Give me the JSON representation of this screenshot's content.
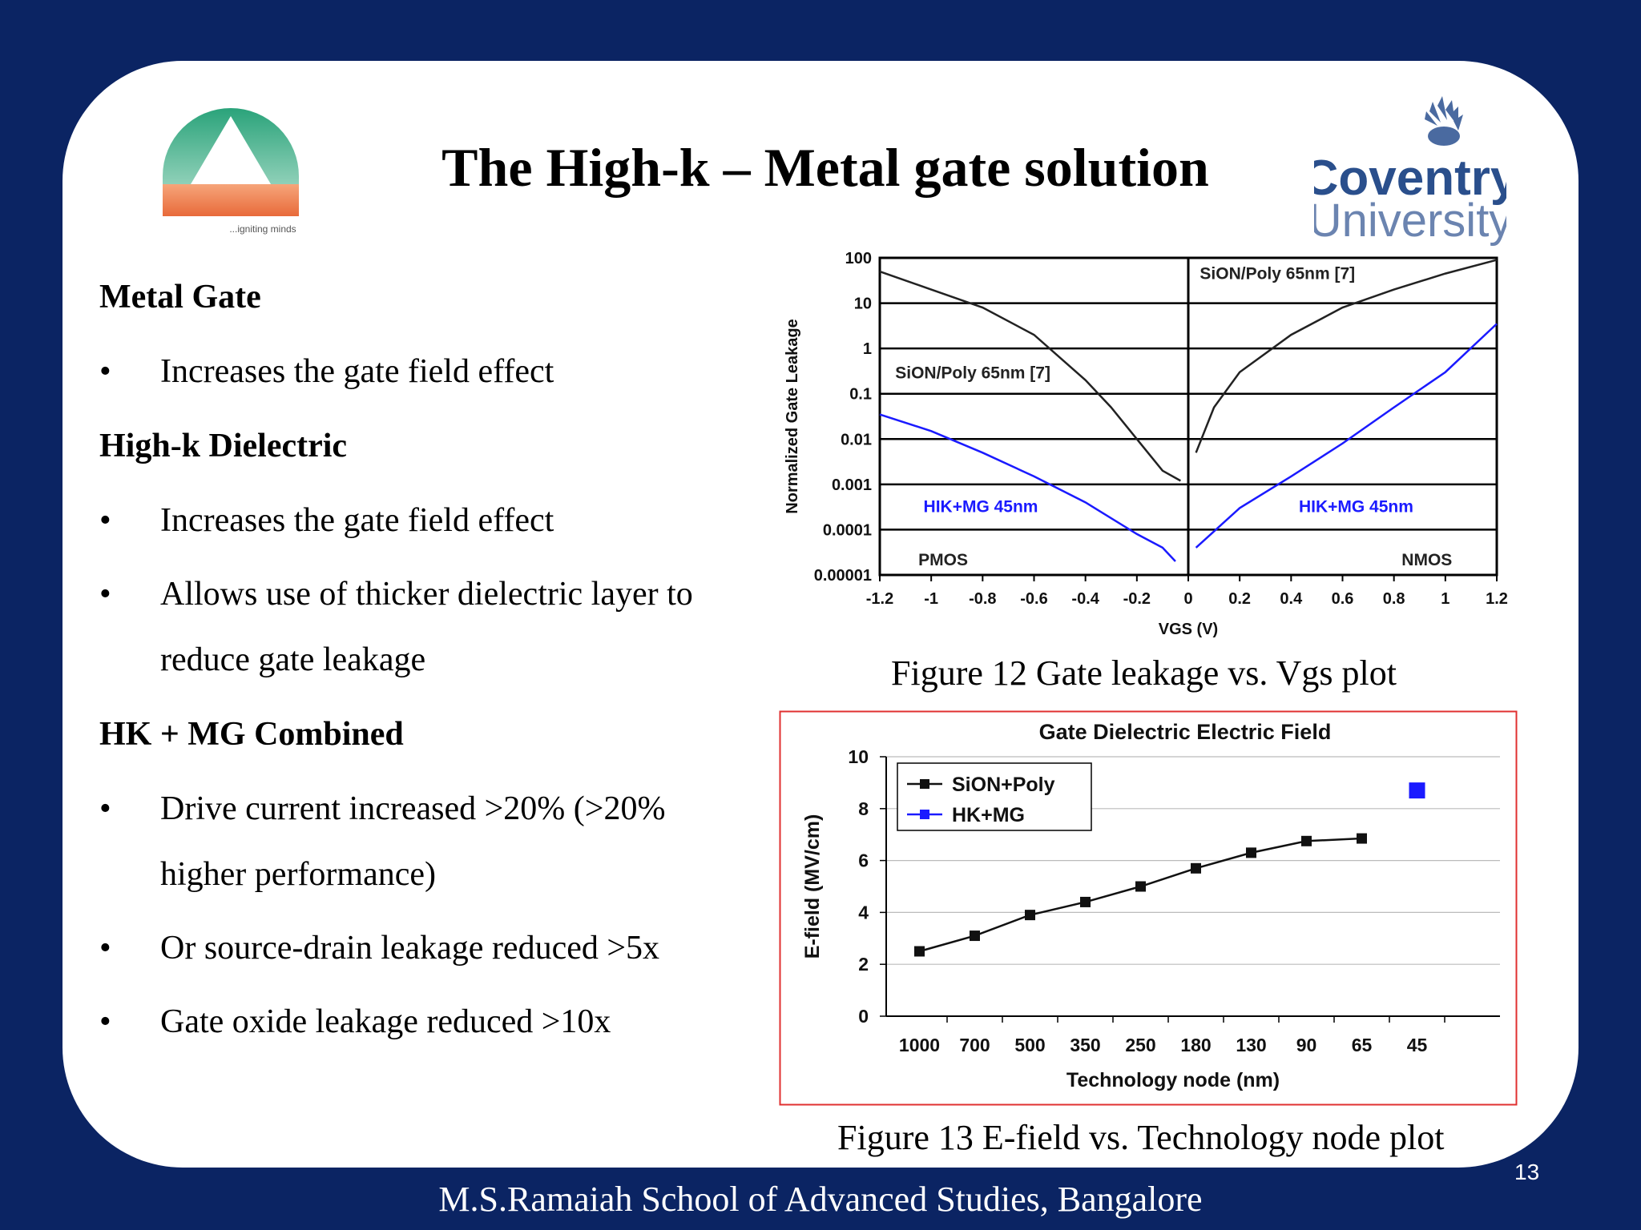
{
  "slide": {
    "title": "The High-k – Metal gate solution",
    "footer": "M.S.Ramaiah School of Advanced Studies, Bangalore",
    "page_number": "13",
    "logo_left_text": "...igniting minds",
    "logo_right_text_1": "Coventry",
    "logo_right_text_2": "University"
  },
  "content": {
    "sections": [
      {
        "heading": "Metal Gate",
        "bullets": [
          "Increases the gate field effect"
        ]
      },
      {
        "heading": "High-k Dielectric",
        "bullets": [
          "Increases the gate field effect",
          "Allows use of thicker dielectric layer to",
          "reduce gate leakage"
        ]
      },
      {
        "heading": "HK + MG Combined",
        "bullets": [
          "Drive current increased >20% (>20%",
          "higher performance)",
          "Or source-drain leakage reduced >5x",
          "Gate oxide leakage reduced >10x"
        ]
      }
    ]
  },
  "captions": {
    "fig12": "Figure 12 Gate leakage vs. Vgs plot",
    "fig13": "Figure 13 E-field vs. Technology node plot"
  },
  "colors": {
    "background": "#0b2463",
    "hkmg": "#1a1aff",
    "sion": "#000000",
    "frame": "#e03030"
  },
  "chart_data": [
    {
      "type": "line",
      "title": "",
      "xlabel": "VGS (V)",
      "ylabel": "Normalized Gate Leakage",
      "y_scale": "log",
      "xlim": [
        -1.2,
        1.2
      ],
      "ylim": [
        1e-05,
        100
      ],
      "x_ticks": [
        "-1.2",
        "-1",
        "-0.8",
        "-0.6",
        "-0.4",
        "-0.2",
        "0",
        "0.2",
        "0.4",
        "0.6",
        "0.8",
        "1",
        "1.2"
      ],
      "y_ticks": [
        "100",
        "10",
        "1",
        "0.1",
        "0.01",
        "0.001",
        "0.0001",
        "0.00001"
      ],
      "annotations": [
        "SiON/Poly 65nm [7]",
        "SiON/Poly 65nm [7]",
        "HIK+MG 45nm",
        "HIK+MG 45nm",
        "PMOS",
        "NMOS"
      ],
      "series": [
        {
          "name": "SiON/Poly 65nm [7]",
          "x": [
            -1.2,
            -1.0,
            -0.8,
            -0.6,
            -0.4,
            -0.3,
            -0.2,
            -0.1,
            -0.03
          ],
          "y": [
            50,
            20,
            8,
            2,
            0.2,
            0.05,
            0.01,
            0.002,
            0.0012
          ]
        },
        {
          "name": "SiON/Poly 65nm [7]",
          "x": [
            0.03,
            0.1,
            0.2,
            0.4,
            0.6,
            0.8,
            1.0,
            1.2
          ],
          "y": [
            0.005,
            0.05,
            0.3,
            2,
            8,
            20,
            45,
            90
          ]
        },
        {
          "name": "HIK+MG 45nm",
          "x": [
            -1.2,
            -1.0,
            -0.8,
            -0.6,
            -0.4,
            -0.2,
            -0.1,
            -0.05
          ],
          "y": [
            0.035,
            0.015,
            0.005,
            0.0015,
            0.0004,
            8e-05,
            4e-05,
            2e-05
          ]
        },
        {
          "name": "HIK+MG 45nm",
          "x": [
            0.03,
            0.2,
            0.4,
            0.6,
            0.8,
            1.0,
            1.2
          ],
          "y": [
            4e-05,
            0.0003,
            0.0015,
            0.008,
            0.05,
            0.3,
            3.5
          ]
        }
      ]
    },
    {
      "type": "line",
      "title": "Gate Dielectric Electric Field",
      "xlabel": "Technology node (nm)",
      "ylabel": "E-field (MV/cm)",
      "ylim": [
        0,
        10
      ],
      "y_ticks": [
        0,
        2,
        4,
        6,
        8,
        10
      ],
      "categories": [
        "1000",
        "700",
        "500",
        "350",
        "250",
        "180",
        "130",
        "90",
        "65",
        "45"
      ],
      "legend_placement": "top-left",
      "series": [
        {
          "name": "SiON+Poly",
          "values": [
            2.5,
            3.1,
            3.9,
            4.4,
            5.0,
            5.7,
            6.3,
            6.75,
            6.85,
            null
          ]
        },
        {
          "name": "HK+MG",
          "values": [
            null,
            null,
            null,
            null,
            null,
            null,
            null,
            null,
            null,
            8.7
          ]
        }
      ]
    }
  ]
}
